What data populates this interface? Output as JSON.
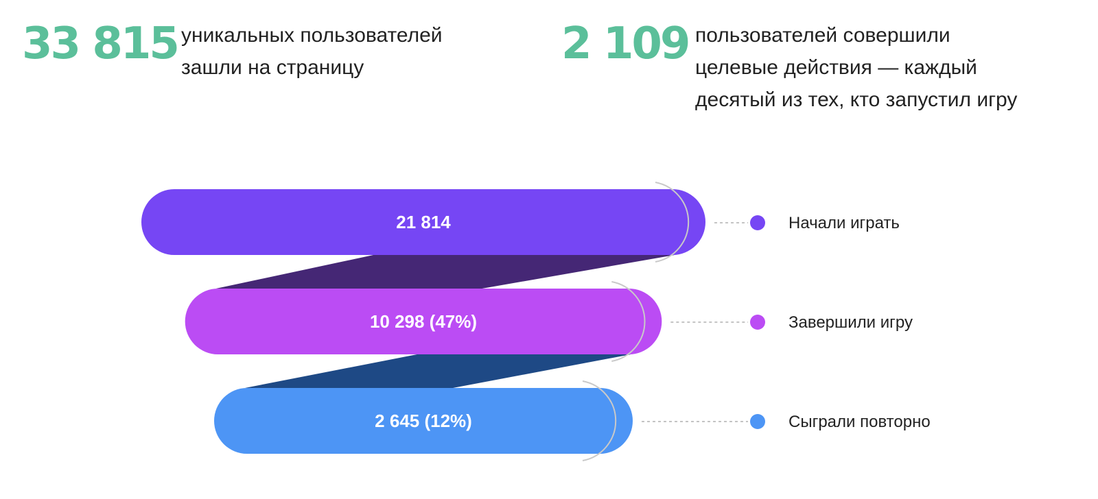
{
  "stats": [
    {
      "number": "33 815",
      "lines": [
        "уникальных пользователей",
        "зашли на страницу"
      ]
    },
    {
      "number": "2 109",
      "lines": [
        "пользователей совершили",
        "целевые действия — каждый",
        "десятый из тех, кто запустил игру"
      ]
    }
  ],
  "colors": {
    "accent_green": "#5bbf9a",
    "text": "#222222",
    "arc": "#c9c9c9"
  },
  "chart_data": {
    "type": "funnel",
    "title": "",
    "stages": [
      {
        "name": "Начали играть",
        "value": 21814,
        "label": "21 814",
        "color": "#7646f4",
        "connector_color": "#452775"
      },
      {
        "name": "Завершили игру",
        "value": 10298,
        "percent": 47,
        "label": "10 298 (47%)",
        "color": "#bb4cf4",
        "connector_color": "#1e4985"
      },
      {
        "name": "Сыграли повторно",
        "value": 2645,
        "percent": 12,
        "label": "2 645 (12%)",
        "color": "#4d95f5"
      }
    ]
  }
}
